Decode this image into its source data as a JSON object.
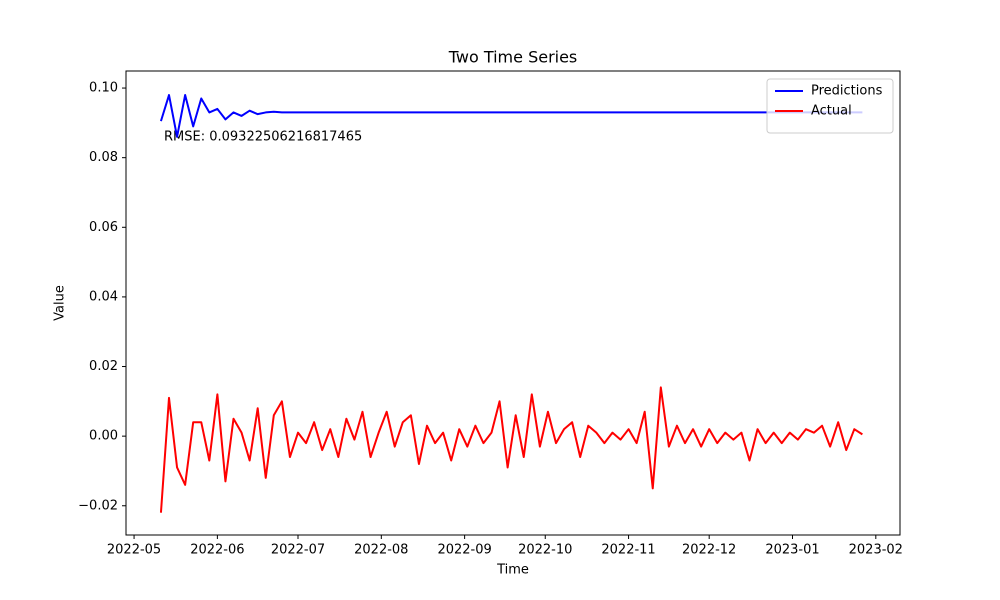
{
  "chart_data": {
    "type": "line",
    "title": "Two Time Series",
    "xlabel": "Time",
    "ylabel": "Value",
    "annotation": "RMSE: 0.09322506216817465",
    "x": [
      "2022-05-11",
      "2022-05-14",
      "2022-05-17",
      "2022-05-20",
      "2022-05-23",
      "2022-05-26",
      "2022-05-29",
      "2022-06-01",
      "2022-06-04",
      "2022-06-07",
      "2022-06-10",
      "2022-06-13",
      "2022-06-16",
      "2022-06-19",
      "2022-06-22",
      "2022-06-25",
      "2022-06-28",
      "2022-07-01",
      "2022-07-04",
      "2022-07-07",
      "2022-07-10",
      "2022-07-13",
      "2022-07-16",
      "2022-07-19",
      "2022-07-22",
      "2022-07-25",
      "2022-07-28",
      "2022-07-31",
      "2022-08-03",
      "2022-08-06",
      "2022-08-09",
      "2022-08-12",
      "2022-08-15",
      "2022-08-18",
      "2022-08-21",
      "2022-08-24",
      "2022-08-27",
      "2022-08-30",
      "2022-09-02",
      "2022-09-05",
      "2022-09-08",
      "2022-09-11",
      "2022-09-14",
      "2022-09-17",
      "2022-09-20",
      "2022-09-23",
      "2022-09-26",
      "2022-09-29",
      "2022-10-02",
      "2022-10-05",
      "2022-10-08",
      "2022-10-11",
      "2022-10-14",
      "2022-10-17",
      "2022-10-20",
      "2022-10-23",
      "2022-10-26",
      "2022-10-29",
      "2022-11-01",
      "2022-11-04",
      "2022-11-07",
      "2022-11-10",
      "2022-11-13",
      "2022-11-16",
      "2022-11-19",
      "2022-11-22",
      "2022-11-25",
      "2022-11-28",
      "2022-12-01",
      "2022-12-04",
      "2022-12-07",
      "2022-12-10",
      "2022-12-13",
      "2022-12-16",
      "2022-12-19",
      "2022-12-22",
      "2022-12-25",
      "2022-12-28",
      "2022-12-31",
      "2023-01-03",
      "2023-01-06",
      "2023-01-09",
      "2023-01-12",
      "2023-01-15",
      "2023-01-18",
      "2023-01-21",
      "2023-01-24",
      "2023-01-27"
    ],
    "series": [
      {
        "name": "Predictions",
        "color": "#0000ff",
        "values": [
          0.0905,
          0.098,
          0.086,
          0.098,
          0.089,
          0.097,
          0.093,
          0.094,
          0.091,
          0.093,
          0.092,
          0.0935,
          0.0925,
          0.093,
          0.0932,
          0.093,
          0.093,
          0.093,
          0.093,
          0.093,
          0.093,
          0.093,
          0.093,
          0.093,
          0.093,
          0.093,
          0.093,
          0.093,
          0.093,
          0.093,
          0.093,
          0.093,
          0.093,
          0.093,
          0.093,
          0.093,
          0.093,
          0.093,
          0.093,
          0.093,
          0.093,
          0.093,
          0.093,
          0.093,
          0.093,
          0.093,
          0.093,
          0.093,
          0.093,
          0.093,
          0.093,
          0.093,
          0.093,
          0.093,
          0.093,
          0.093,
          0.093,
          0.093,
          0.093,
          0.093,
          0.093,
          0.093,
          0.093,
          0.093,
          0.093,
          0.093,
          0.093,
          0.093,
          0.093,
          0.093,
          0.093,
          0.093,
          0.093,
          0.093,
          0.093,
          0.093,
          0.093,
          0.093,
          0.093,
          0.093,
          0.093,
          0.093,
          0.093,
          0.093,
          0.093,
          0.093,
          0.093,
          0.093
        ]
      },
      {
        "name": "Actual",
        "color": "#ff0000",
        "values": [
          -0.022,
          0.011,
          -0.009,
          -0.014,
          0.004,
          0.004,
          -0.007,
          0.012,
          -0.013,
          0.005,
          0.001,
          -0.007,
          0.008,
          -0.012,
          0.006,
          0.01,
          -0.006,
          0.001,
          -0.002,
          0.004,
          -0.004,
          0.002,
          -0.006,
          0.005,
          -0.001,
          0.007,
          -0.006,
          0.001,
          0.007,
          -0.003,
          0.004,
          0.006,
          -0.008,
          0.003,
          -0.002,
          0.001,
          -0.007,
          0.002,
          -0.003,
          0.003,
          -0.002,
          0.001,
          0.01,
          -0.009,
          0.006,
          -0.006,
          0.012,
          -0.003,
          0.007,
          -0.002,
          0.002,
          0.004,
          -0.006,
          0.003,
          0.001,
          -0.002,
          0.001,
          -0.001,
          0.002,
          -0.002,
          0.007,
          -0.015,
          0.014,
          -0.003,
          0.003,
          -0.002,
          0.002,
          -0.003,
          0.002,
          -0.002,
          0.001,
          -0.001,
          0.001,
          -0.007,
          0.002,
          -0.002,
          0.001,
          -0.002,
          0.001,
          -0.001,
          0.002,
          0.001,
          0.003,
          -0.003,
          0.004,
          -0.004,
          0.002,
          0.0005
        ]
      }
    ],
    "xlim": [
      "2022-04-28",
      "2023-02-10"
    ],
    "xticks": [
      {
        "value": "2022-05-01",
        "label": "2022-05"
      },
      {
        "value": "2022-06-01",
        "label": "2022-06"
      },
      {
        "value": "2022-07-01",
        "label": "2022-07"
      },
      {
        "value": "2022-08-01",
        "label": "2022-08"
      },
      {
        "value": "2022-09-01",
        "label": "2022-09"
      },
      {
        "value": "2022-10-01",
        "label": "2022-10"
      },
      {
        "value": "2022-11-01",
        "label": "2022-11"
      },
      {
        "value": "2022-12-01",
        "label": "2022-12"
      },
      {
        "value": "2023-01-01",
        "label": "2023-01"
      },
      {
        "value": "2023-02-01",
        "label": "2023-02"
      }
    ],
    "ylim": [
      -0.0284,
      0.1049
    ],
    "yticks": [
      {
        "value": -0.02,
        "label": "−0.02"
      },
      {
        "value": 0,
        "label": "0.00"
      },
      {
        "value": 0.02,
        "label": "0.02"
      },
      {
        "value": 0.04,
        "label": "0.04"
      },
      {
        "value": 0.06,
        "label": "0.06"
      },
      {
        "value": 0.08,
        "label": "0.08"
      },
      {
        "value": 0.1,
        "label": "0.10"
      }
    ],
    "grid": false,
    "legend": "upper right"
  }
}
